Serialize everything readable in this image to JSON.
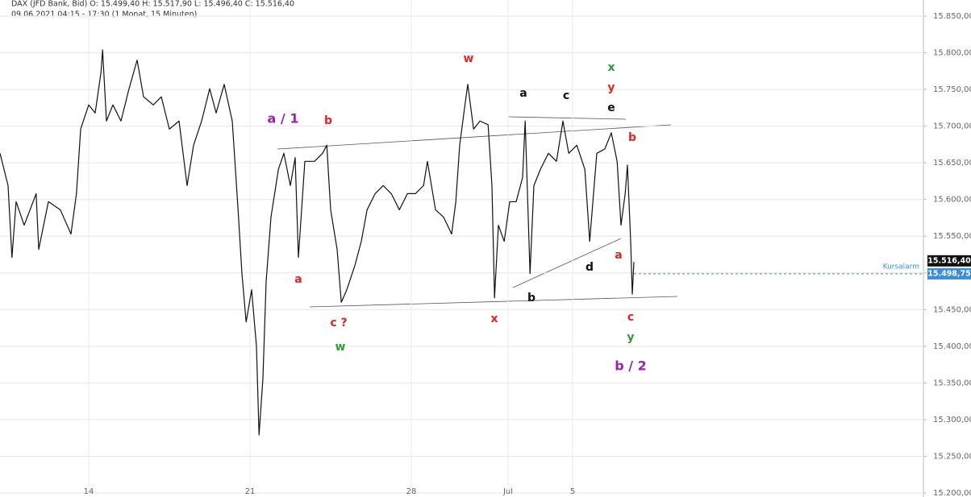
{
  "chart_data": {
    "type": "line",
    "title": "DAX (JFD Bank, Bid)  O: 15.499,40  H: 15.517,90  L: 15.496,40  C: 15.516,40",
    "subtitle": "09.06.2021 04:15 - 17:30  (1 Monat, 15 Minuten)",
    "xlim": [
      -2.75,
      25.875
    ],
    "ylim": [
      15200,
      15850
    ],
    "xticks": [
      {
        "value": 0,
        "label": "14"
      },
      {
        "value": 5,
        "label": "21"
      },
      {
        "value": 10,
        "label": "28"
      },
      {
        "value": 13,
        "label": "Jul"
      },
      {
        "value": 15,
        "label": "5"
      }
    ],
    "yticks": [
      {
        "value": 15200,
        "label": "15.200,00"
      },
      {
        "value": 15250,
        "label": "15.250,00"
      },
      {
        "value": 15300,
        "label": "15.300,00"
      },
      {
        "value": 15350,
        "label": "15.350,00"
      },
      {
        "value": 15400,
        "label": "15.400,00"
      },
      {
        "value": 15450,
        "label": "15.450,00"
      },
      {
        "value": 15500,
        "label": "15.500,00"
      },
      {
        "value": 15550,
        "label": "15.550,00"
      },
      {
        "value": 15600,
        "label": "15.600,00"
      },
      {
        "value": 15650,
        "label": "15.650,00"
      },
      {
        "value": 15700,
        "label": "15.700,00"
      },
      {
        "value": 15750,
        "label": "15.750,00"
      },
      {
        "value": 15800,
        "label": "15.800,00"
      },
      {
        "value": 15850,
        "label": "15.850,00"
      }
    ],
    "grid": true,
    "series": [
      {
        "name": "DAX",
        "color": "#111111",
        "x": [
          -2.75,
          -2.5,
          -2.38,
          -2.25,
          -2,
          -1.63,
          -1.55,
          -1.25,
          -0.88,
          -0.55,
          -0.38,
          -0.25,
          0,
          0.2,
          0.38,
          0.43,
          0.55,
          0.75,
          1,
          1.25,
          1.5,
          1.7,
          2,
          2.25,
          2.5,
          2.8,
          3.05,
          3.25,
          3.5,
          3.75,
          3.95,
          4.2,
          4.45,
          4.63,
          4.75,
          4.88,
          5.05,
          5.2,
          5.28,
          5.4,
          5.5,
          5.65,
          5.88,
          6.05,
          6.25,
          6.4,
          6.5,
          6.7,
          7,
          7.25,
          7.38,
          7.5,
          7.7,
          7.83,
          8,
          8.25,
          8.45,
          8.63,
          8.88,
          9.13,
          9.38,
          9.63,
          9.88,
          10.13,
          10.38,
          10.5,
          10.75,
          11,
          11.25,
          11.38,
          11.5,
          11.63,
          11.75,
          11.93,
          12.13,
          12.38,
          12.5,
          12.58,
          12.7,
          12.88,
          13.05,
          13.25,
          13.45,
          13.53,
          13.68,
          13.8,
          14,
          14.25,
          14.5,
          14.7,
          14.88,
          15.13,
          15.38,
          15.53,
          15.75,
          16,
          16.2,
          16.38,
          16.5,
          16.63,
          16.7,
          16.8,
          16.85,
          16.9
        ],
        "values": [
          15663,
          15619,
          15521,
          15597,
          15565,
          15608,
          15532,
          15597,
          15586,
          15553,
          15608,
          15696,
          15729,
          15718,
          15773,
          15804,
          15707,
          15729,
          15707,
          15751,
          15790,
          15740,
          15729,
          15740,
          15696,
          15707,
          15619,
          15674,
          15707,
          15751,
          15718,
          15757,
          15707,
          15586,
          15499,
          15433,
          15477,
          15400,
          15279,
          15356,
          15488,
          15576,
          15641,
          15663,
          15619,
          15657,
          15521,
          15652,
          15652,
          15663,
          15674,
          15586,
          15532,
          15460,
          15477,
          15510,
          15543,
          15586,
          15608,
          15619,
          15608,
          15586,
          15608,
          15608,
          15619,
          15652,
          15586,
          15576,
          15553,
          15597,
          15674,
          15718,
          15757,
          15696,
          15707,
          15702,
          15619,
          15466,
          15565,
          15543,
          15597,
          15597,
          15630,
          15707,
          15499,
          15619,
          15641,
          15663,
          15652,
          15707,
          15663,
          15674,
          15641,
          15543,
          15663,
          15669,
          15691,
          15652,
          15565,
          15608,
          15647,
          15543,
          15471,
          15515
        ]
      }
    ],
    "price_marks": [
      {
        "value": 15516.4,
        "label": "15.516,40"
      },
      {
        "value": 15498.75,
        "label": "15.498,75"
      }
    ],
    "alarm_label": "Kursalarm",
    "annotations": [
      {
        "text": "a / 1",
        "color": "#a21caf"
      },
      {
        "text": "b",
        "color": "#e8231e"
      },
      {
        "text": "a",
        "color": "#e8231e"
      },
      {
        "text": "c ?",
        "color": "#e8231e"
      },
      {
        "text": "w",
        "color": "#2e9a3a"
      },
      {
        "text": "w",
        "color": "#e8231e"
      },
      {
        "text": "x",
        "color": "#e8231e"
      },
      {
        "text": "a",
        "color": "#111111"
      },
      {
        "text": "c",
        "color": "#111111"
      },
      {
        "text": "e",
        "color": "#111111"
      },
      {
        "text": "x",
        "color": "#2e9a3a"
      },
      {
        "text": "y",
        "color": "#e8231e"
      },
      {
        "text": "b",
        "color": "#e8231e"
      },
      {
        "text": "d",
        "color": "#111111"
      },
      {
        "text": "b",
        "color": "#111111"
      },
      {
        "text": "a",
        "color": "#e8231e"
      },
      {
        "text": "c",
        "color": "#e8231e"
      },
      {
        "text": "y",
        "color": "#2e9a3a"
      },
      {
        "text": "b / 2",
        "color": "#a21caf"
      }
    ]
  }
}
